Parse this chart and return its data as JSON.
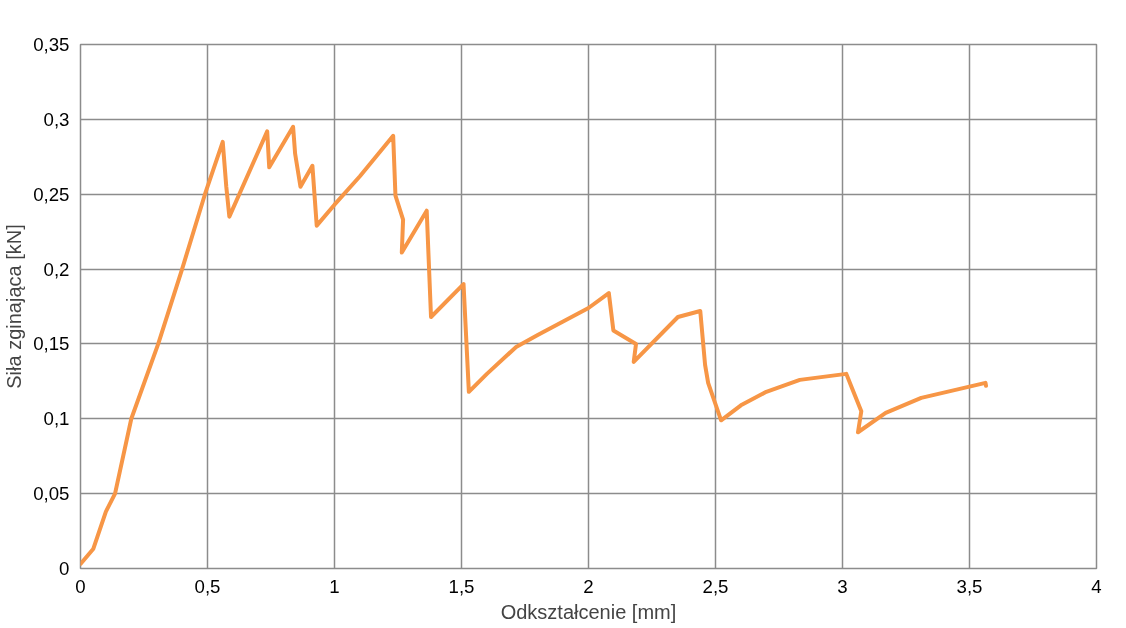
{
  "chart_data": {
    "type": "line",
    "xlabel": "Odkształcenie [mm]",
    "ylabel": "Siła zginająca [kN]",
    "series": [
      {
        "color": "#f79646",
        "x": [
          0,
          0.05,
          0.1,
          0.136,
          0.2,
          0.306,
          0.4,
          0.49,
          0.56,
          0.574,
          0.586,
          0.735,
          0.743,
          0.837,
          0.845,
          0.866,
          0.913,
          0.93,
          1.0,
          1.1,
          1.231,
          1.24,
          1.27,
          1.265,
          1.363,
          1.38,
          1.508,
          1.529,
          1.6,
          1.715,
          1.8,
          1.9,
          2.0,
          2.08,
          2.098,
          2.187,
          2.178,
          2.352,
          2.44,
          2.459,
          2.471,
          2.522,
          2.6,
          2.7,
          2.832,
          3.015,
          3.036,
          3.074,
          3.061,
          3.17,
          3.31,
          3.563,
          3.565
        ],
        "values": [
          0.003,
          0.013,
          0.038,
          0.05,
          0.1,
          0.15,
          0.2,
          0.25,
          0.285,
          0.255,
          0.235,
          0.292,
          0.268,
          0.295,
          0.277,
          0.255,
          0.269,
          0.229,
          0.243,
          0.262,
          0.289,
          0.249,
          0.233,
          0.211,
          0.239,
          0.168,
          0.19,
          0.118,
          0.13,
          0.148,
          0.156,
          0.165,
          0.174,
          0.184,
          0.159,
          0.15,
          0.138,
          0.168,
          0.172,
          0.136,
          0.124,
          0.099,
          0.109,
          0.118,
          0.126,
          0.13,
          0.121,
          0.105,
          0.091,
          0.104,
          0.114,
          0.124,
          0.122
        ]
      }
    ],
    "xlim": [
      0,
      4
    ],
    "ylim": [
      0,
      0.35
    ],
    "xticks": [
      0,
      {
        "value": 0.5,
        "label": "0,5"
      },
      1,
      {
        "value": 1.5,
        "label": "1,5"
      },
      2,
      {
        "value": 2.5,
        "label": "2,5"
      },
      3,
      {
        "value": 3.5,
        "label": "3,5"
      },
      4
    ],
    "yticks": [
      0,
      {
        "value": 0.05,
        "label": "0,05"
      },
      {
        "value": 0.1,
        "label": "0,1"
      },
      {
        "value": 0.15,
        "label": "0,15"
      },
      {
        "value": 0.2,
        "label": "0,2"
      },
      {
        "value": 0.25,
        "label": "0,25"
      },
      {
        "value": 0.3,
        "label": "0,3"
      },
      {
        "value": 0.35,
        "label": "0,35"
      }
    ],
    "grid": true,
    "marker": "none",
    "line_style": "solid"
  }
}
